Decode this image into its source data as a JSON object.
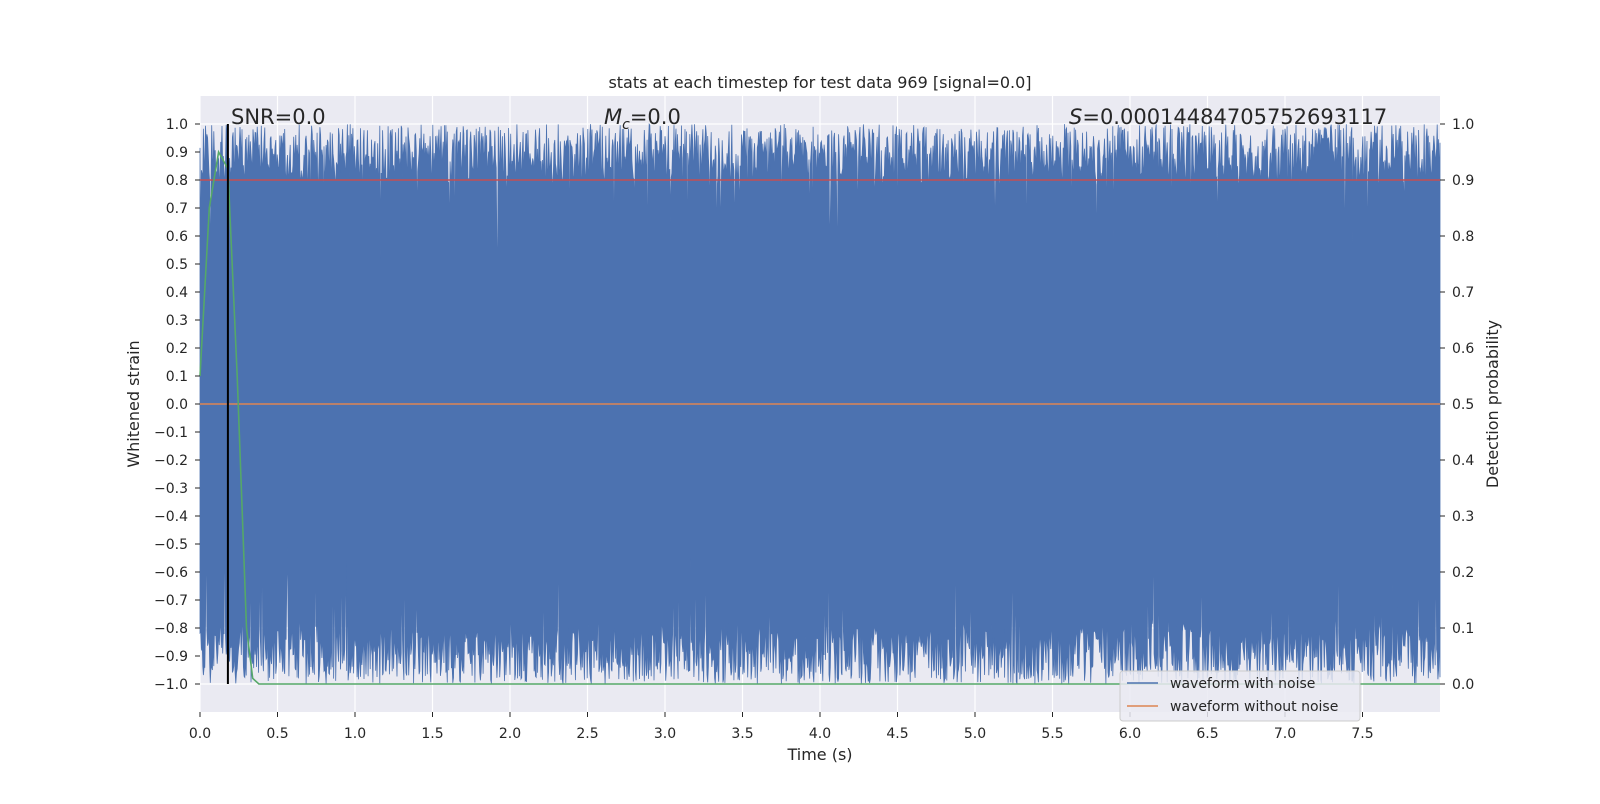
{
  "chart_data": {
    "type": "line",
    "title": "stats at each timestep for test data 969 [signal=0.0]",
    "xlabel": "Time (s)",
    "ylabel": "Whitened strain",
    "y2label": "Detection probability",
    "xlim": [
      0.0,
      8.0
    ],
    "ylim": [
      -1.1,
      1.1
    ],
    "y2lim": [
      -0.05,
      1.05
    ],
    "x_ticks": [
      "0.0",
      "0.5",
      "1.0",
      "1.5",
      "2.0",
      "2.5",
      "3.0",
      "3.5",
      "4.0",
      "4.5",
      "5.0",
      "5.5",
      "6.0",
      "6.5",
      "7.0",
      "7.5"
    ],
    "y_ticks": [
      "1.0",
      "0.9",
      "0.8",
      "0.7",
      "0.6",
      "0.5",
      "0.4",
      "0.3",
      "0.2",
      "0.1",
      "0.0",
      "−0.1",
      "−0.2",
      "−0.3",
      "−0.4",
      "−0.5",
      "−0.6",
      "−0.7",
      "−0.8",
      "−0.9",
      "−1.0"
    ],
    "y2_ticks": [
      "1.0",
      "0.9",
      "0.8",
      "0.7",
      "0.6",
      "0.5",
      "0.4",
      "0.3",
      "0.2",
      "0.1",
      "0.0"
    ],
    "grid": true,
    "legend_position": "lower-right",
    "annotations": {
      "snr": "SNR=0.0",
      "mc_symbol": "M",
      "mc_sub": "c",
      "mc_value": "=0.0",
      "s_symbol": "S",
      "s_value": "=0.00014484705752693117"
    },
    "series": [
      {
        "name": "waveform with noise",
        "axis": "left",
        "color": "#4c72b0",
        "description_values": "dense whitened noise filling roughly [-1, 1] over the full 0–8 s range"
      },
      {
        "name": "waveform without noise",
        "axis": "left",
        "color": "#dd8452",
        "x": [
          0.0,
          8.0
        ],
        "y": [
          0.0,
          0.0
        ]
      },
      {
        "name": "",
        "axis": "right",
        "color": "#55a868",
        "x": [
          0.0,
          0.06,
          0.12,
          0.18,
          0.24,
          0.3,
          0.34,
          0.38,
          8.0
        ],
        "y": [
          0.55,
          0.85,
          0.95,
          0.92,
          0.55,
          0.1,
          0.01,
          0.0,
          0.0
        ]
      },
      {
        "name": "",
        "axis": "left",
        "color": "#c44e52",
        "x": [
          0.0,
          8.0
        ],
        "y": [
          0.8,
          0.8
        ]
      }
    ],
    "vertical_line_x": 0.18,
    "colors": {
      "axes_bg": "#eaeaf2",
      "grid": "#ffffff",
      "noise": "#4c72b0",
      "clean": "#dd8452",
      "threshold": "#c44e52",
      "probability": "#55a868",
      "marker": "#000000"
    }
  }
}
